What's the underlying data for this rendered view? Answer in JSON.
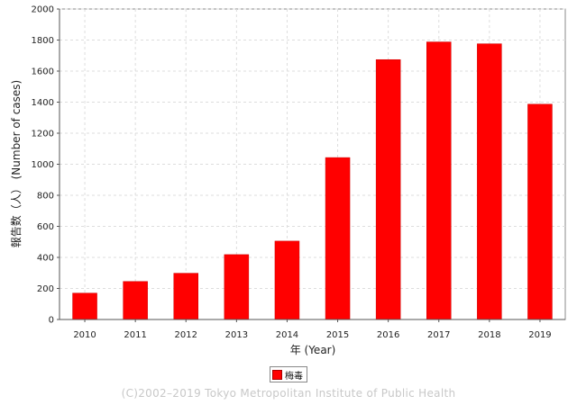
{
  "chart_data": {
    "type": "bar",
    "categories": [
      "2010",
      "2011",
      "2012",
      "2013",
      "2014",
      "2015",
      "2016",
      "2017",
      "2018",
      "2019"
    ],
    "series": [
      {
        "name": "梅毒",
        "values": [
          170,
          245,
          298,
          418,
          505,
          1043,
          1674,
          1788,
          1776,
          1387
        ],
        "color": "#ff0000"
      }
    ],
    "xlabel": "年 (Year)",
    "ylabel": "報告数（人） (Number of cases)",
    "ylim": [
      0,
      2000
    ],
    "yticks": [
      0,
      200,
      400,
      600,
      800,
      1000,
      1200,
      1400,
      1600,
      1800,
      2000
    ],
    "grid": true,
    "legend_position": "bottom-center"
  },
  "footer": {
    "copyright": "(C)2002–2019 Tokyo Metropolitan Institute of Public Health"
  }
}
